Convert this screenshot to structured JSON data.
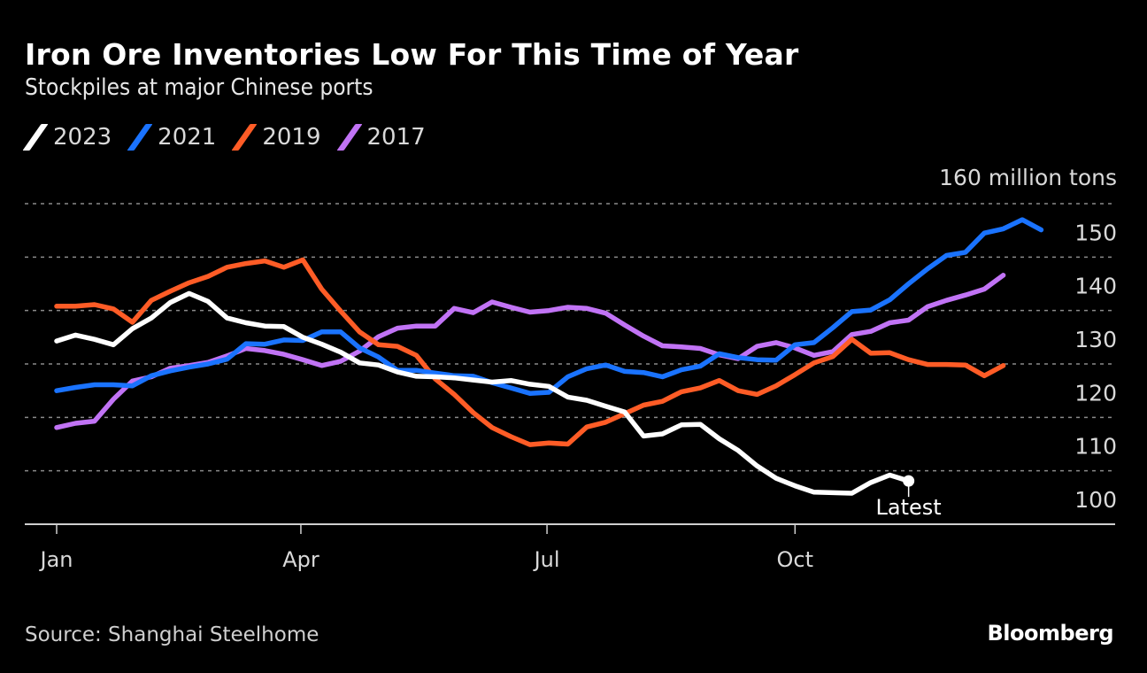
{
  "header": {
    "title": "Iron Ore Inventories Low For This Time of Year",
    "subtitle": "Stockpiles at major Chinese ports"
  },
  "legend": [
    {
      "label": "2023",
      "color": "#ffffff"
    },
    {
      "label": "2021",
      "color": "#1a73ff"
    },
    {
      "label": "2019",
      "color": "#ff5c26"
    },
    {
      "label": "2017",
      "color": "#c173f5"
    }
  ],
  "footer": {
    "source": "Source: Shanghai Steelhome",
    "brand": "Bloomberg"
  },
  "chart_data": {
    "type": "line",
    "title": "Iron Ore Inventories Low For This Time of Year",
    "subtitle": "Stockpiles at major Chinese ports",
    "xlabel": "",
    "ylabel": "million tons",
    "unit_label": "160 million tons",
    "x_unit": "week of year",
    "xlim": [
      0,
      52
    ],
    "ylim": [
      100,
      160
    ],
    "yticks": [
      100,
      110,
      120,
      130,
      140,
      150,
      160
    ],
    "ytick_labels": [
      "100",
      "110",
      "120",
      "130",
      "140",
      "150",
      "160 million tons"
    ],
    "xticks": [
      {
        "week": 0,
        "label": "Jan"
      },
      {
        "week": 12.9,
        "label": "Apr"
      },
      {
        "week": 25.9,
        "label": "Jul"
      },
      {
        "week": 39,
        "label": "Oct"
      }
    ],
    "grid": true,
    "legend_position": "top-left",
    "annotation": {
      "text": "Latest",
      "series": "2023"
    },
    "series": [
      {
        "name": "2023",
        "color": "#ffffff",
        "values": [
          134.3,
          135.4,
          134.6,
          133.6,
          136.6,
          138.6,
          141.5,
          143.2,
          141.7,
          138.6,
          137.7,
          137.1,
          137.0,
          135.0,
          133.7,
          132.2,
          130.2,
          129.8,
          128.5,
          127.7,
          127.6,
          127.4,
          127.0,
          126.6,
          126.9,
          126.2,
          125.8,
          123.8,
          123.2,
          122.1,
          121.0,
          116.5,
          116.9,
          118.6,
          118.7,
          116.0,
          113.8,
          110.9,
          108.6,
          107.2,
          106.0,
          105.9,
          105.8,
          107.8,
          109.2,
          108.1
        ]
      },
      {
        "name": "2021",
        "color": "#1a73ff",
        "values": [
          125.0,
          125.6,
          126.1,
          126.1,
          125.9,
          127.8,
          128.7,
          129.4,
          130.0,
          130.9,
          133.8,
          133.7,
          134.5,
          134.4,
          136.0,
          136.0,
          133.0,
          131.3,
          128.8,
          128.8,
          128.3,
          127.8,
          127.7,
          126.5,
          125.5,
          124.5,
          124.7,
          127.6,
          129.1,
          129.8,
          128.6,
          128.4,
          127.6,
          128.9,
          129.6,
          131.9,
          131.2,
          130.8,
          130.7,
          133.6,
          134.0,
          136.8,
          139.8,
          140.1,
          142.0,
          145.0,
          147.8,
          150.3,
          150.9,
          154.5,
          155.3,
          157.0,
          155.1
        ]
      },
      {
        "name": "2019",
        "color": "#ff5c26",
        "values": [
          140.8,
          140.8,
          141.1,
          140.3,
          137.8,
          141.9,
          143.6,
          145.2,
          146.4,
          148.1,
          148.8,
          149.3,
          148.1,
          149.5,
          144.0,
          139.9,
          136.0,
          133.6,
          133.3,
          131.6,
          127.2,
          124.3,
          120.9,
          118.1,
          116.4,
          114.9,
          115.2,
          115.0,
          118.2,
          119.1,
          120.7,
          122.3,
          123.0,
          124.8,
          125.5,
          126.9,
          125.0,
          124.3,
          125.9,
          128.0,
          130.2,
          131.4,
          134.6,
          132.0,
          132.1,
          130.8,
          129.9,
          129.9,
          129.8,
          127.8,
          129.7
        ]
      },
      {
        "name": "2017",
        "color": "#c173f5",
        "values": [
          118.1,
          118.9,
          119.3,
          123.4,
          126.8,
          127.6,
          129.2,
          129.7,
          130.3,
          131.5,
          132.9,
          132.5,
          131.8,
          130.8,
          129.7,
          130.5,
          132.4,
          135.1,
          136.7,
          137.1,
          137.1,
          140.4,
          139.6,
          141.6,
          140.6,
          139.7,
          140.0,
          140.6,
          140.4,
          139.5,
          137.3,
          135.2,
          133.4,
          133.2,
          132.9,
          131.7,
          131.0,
          133.3,
          134.0,
          133.0,
          131.6,
          132.3,
          135.5,
          136.1,
          137.7,
          138.2,
          140.7,
          141.9,
          142.9,
          144.0,
          146.6
        ]
      }
    ]
  }
}
